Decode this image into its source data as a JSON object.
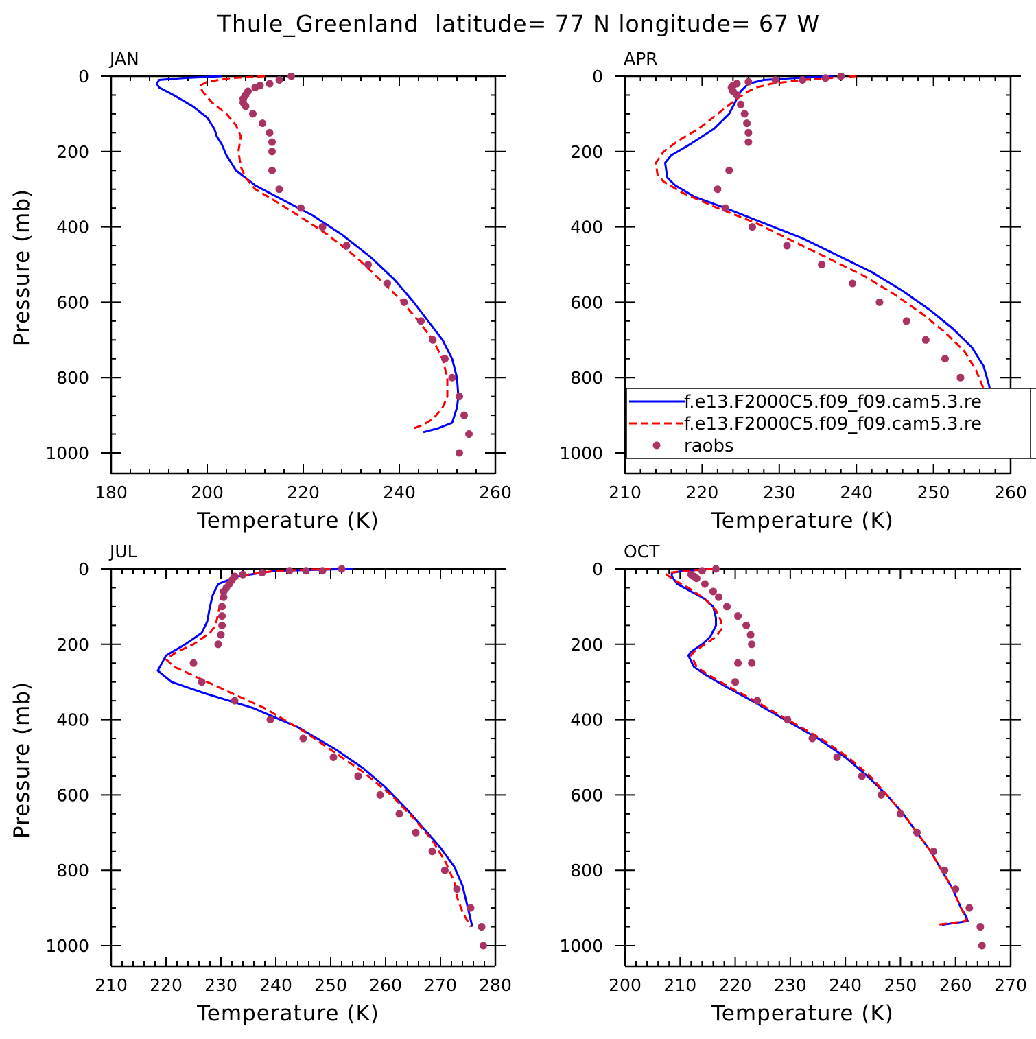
{
  "figure": {
    "title": "Thule_Greenland  latitude= 77 N longitude= 67 W"
  },
  "legend": {
    "entries": [
      {
        "label": "f.e13.F2000C5.f09_f09.cam5.3.re",
        "style": "solid",
        "color": "#0000ff"
      },
      {
        "label": "f.e13.F2000C5.f09_f09.cam5.3.re",
        "style": "dashed",
        "color": "#ff0000"
      },
      {
        "label": "raobs",
        "style": "marker",
        "color": "#aa3366"
      }
    ]
  },
  "chart_data": [
    {
      "type": "line",
      "panel_label": "JAN",
      "xlabel": "Temperature (K)",
      "ylabel": "Pressure (mb)",
      "xlim": [
        180,
        260
      ],
      "xticks": [
        180,
        200,
        220,
        240,
        260
      ],
      "ylim": [
        0,
        1000
      ],
      "yticks": [
        0,
        200,
        400,
        600,
        800,
        1000
      ],
      "y_reversed": true,
      "series": [
        {
          "style": "solid",
          "color": "#0000ff",
          "x": [
            203,
            195,
            190,
            189.5,
            190,
            193,
            197,
            200,
            201.5,
            202,
            203,
            204,
            206,
            210,
            216,
            222,
            228,
            234,
            239,
            243,
            246,
            249,
            251,
            252,
            252.3,
            252,
            251,
            248,
            245
          ],
          "y": [
            0,
            5,
            10,
            20,
            30,
            50,
            80,
            110,
            140,
            160,
            180,
            210,
            250,
            290,
            330,
            370,
            420,
            480,
            540,
            600,
            650,
            700,
            750,
            800,
            850,
            880,
            920,
            935,
            945
          ]
        },
        {
          "style": "dashed",
          "color": "#ff0000",
          "x": [
            212,
            205,
            200,
            198.5,
            199,
            201,
            204,
            206,
            207,
            206.5,
            207,
            208,
            210,
            214,
            219,
            225,
            231,
            236,
            240,
            244,
            247,
            249,
            250,
            250,
            249,
            247,
            245,
            243
          ],
          "y": [
            0,
            5,
            15,
            25,
            40,
            70,
            100,
            130,
            160,
            200,
            240,
            270,
            300,
            330,
            370,
            420,
            480,
            540,
            590,
            650,
            700,
            750,
            800,
            850,
            880,
            910,
            925,
            935
          ]
        },
        {
          "style": "marker",
          "color": "#aa3366",
          "x": [
            217.5,
            215,
            213,
            211,
            210,
            208.5,
            208,
            207.5,
            207.5,
            208,
            209.5,
            211.5,
            213,
            213.5,
            213.5,
            213.5,
            215,
            219.5,
            224,
            229,
            233.5,
            237.5,
            241,
            244.5,
            247,
            249.5,
            251,
            252.5,
            253.5,
            254.5,
            252.5
          ],
          "y": [
            0,
            10,
            20,
            25,
            30,
            40,
            50,
            60,
            70,
            80,
            100,
            125,
            150,
            175,
            200,
            250,
            300,
            350,
            400,
            450,
            500,
            550,
            600,
            650,
            700,
            750,
            800,
            850,
            900,
            950,
            1000
          ]
        }
      ]
    },
    {
      "type": "line",
      "panel_label": "APR",
      "xlabel": "Temperature (K)",
      "ylabel": "",
      "xlim": [
        210,
        260
      ],
      "xticks": [
        210,
        220,
        230,
        240,
        250,
        260
      ],
      "ylim": [
        0,
        1000
      ],
      "yticks": [
        0,
        200,
        400,
        600,
        800,
        1000
      ],
      "y_reversed": true,
      "series": [
        {
          "style": "solid",
          "color": "#0000ff",
          "x": [
            237,
            232,
            228,
            226,
            225,
            224.5,
            223.5,
            221.5,
            218.5,
            216,
            215.2,
            215.5,
            216.5,
            219,
            223,
            228,
            233,
            238,
            242,
            246,
            249.5,
            252.5,
            255,
            256.5,
            257.2,
            257.5,
            257.2,
            256,
            253.5
          ],
          "y": [
            0,
            5,
            10,
            20,
            40,
            60,
            100,
            140,
            180,
            210,
            230,
            270,
            290,
            320,
            350,
            390,
            430,
            480,
            520,
            570,
            620,
            670,
            720,
            770,
            820,
            850,
            900,
            930,
            945
          ]
        },
        {
          "style": "dashed",
          "color": "#ff0000",
          "x": [
            240,
            233,
            229,
            227,
            226,
            224.5,
            222,
            219.5,
            217,
            215,
            214,
            214.2,
            215,
            217.5,
            222,
            227,
            232,
            237,
            241,
            245,
            248.5,
            251.5,
            254,
            255.5,
            256.5,
            257,
            257,
            256.5
          ],
          "y": [
            0,
            10,
            20,
            30,
            40,
            60,
            100,
            140,
            170,
            200,
            230,
            260,
            280,
            310,
            350,
            390,
            440,
            490,
            530,
            580,
            630,
            680,
            730,
            780,
            830,
            870,
            900,
            920
          ]
        },
        {
          "style": "marker",
          "color": "#aa3366",
          "x": [
            238,
            236,
            233,
            229.5,
            226,
            224.5,
            224,
            223.8,
            224,
            224.5,
            225,
            225.5,
            225.8,
            226,
            226,
            223.5,
            222,
            223,
            226.5,
            231,
            235.5,
            239.5,
            243,
            246.5,
            249,
            251.5,
            253.5,
            255,
            256,
            257,
            257
          ],
          "y": [
            0,
            5,
            10,
            10,
            15,
            20,
            25,
            30,
            40,
            50,
            75,
            100,
            125,
            150,
            175,
            250,
            300,
            350,
            400,
            450,
            500,
            550,
            600,
            650,
            700,
            750,
            800,
            850,
            900,
            950,
            1000
          ]
        }
      ]
    },
    {
      "type": "line",
      "panel_label": "JUL",
      "xlabel": "Temperature (K)",
      "ylabel": "Pressure (mb)",
      "xlim": [
        210,
        280
      ],
      "xticks": [
        210,
        220,
        230,
        240,
        250,
        260,
        270,
        280
      ],
      "ylim": [
        0,
        1000
      ],
      "yticks": [
        0,
        200,
        400,
        600,
        800,
        1000
      ],
      "y_reversed": true,
      "series": [
        {
          "style": "solid",
          "color": "#0000ff",
          "x": [
            254,
            240,
            233,
            229.5,
            228.5,
            228,
            227.5,
            226.5,
            223.5,
            220,
            218.5,
            221,
            227,
            236,
            244,
            251,
            256,
            260,
            264,
            267,
            270,
            272.5,
            274,
            275,
            275.8
          ],
          "y": [
            0,
            5,
            20,
            40,
            70,
            100,
            140,
            170,
            200,
            230,
            270,
            300,
            330,
            370,
            420,
            480,
            530,
            580,
            640,
            690,
            740,
            790,
            840,
            900,
            950
          ]
        },
        {
          "style": "dashed",
          "color": "#ff0000",
          "x": [
            250,
            240,
            235,
            232,
            230.5,
            230,
            229.5,
            229,
            228,
            225,
            222,
            220,
            221.5,
            226,
            232,
            238,
            245,
            251,
            256,
            261,
            265,
            268.5,
            271,
            272.5,
            273,
            274,
            275.5
          ],
          "y": [
            0,
            5,
            15,
            30,
            50,
            80,
            120,
            150,
            170,
            200,
            220,
            240,
            260,
            290,
            330,
            370,
            430,
            490,
            540,
            600,
            660,
            720,
            780,
            830,
            870,
            910,
            950
          ]
        },
        {
          "style": "marker",
          "color": "#aa3366",
          "x": [
            252,
            248.5,
            245.5,
            242.5,
            237.5,
            234,
            232.5,
            232,
            231.5,
            231,
            230.5,
            230.5,
            230.2,
            230.2,
            230.2,
            230,
            229.5,
            225,
            226.5,
            232.5,
            239,
            245,
            250.5,
            255,
            259,
            262.5,
            265.5,
            268.5,
            270.8,
            273,
            275.5,
            277.5,
            277.8
          ],
          "y": [
            0,
            5,
            5,
            5,
            10,
            15,
            20,
            30,
            40,
            50,
            60,
            75,
            100,
            125,
            150,
            175,
            200,
            250,
            300,
            350,
            400,
            450,
            500,
            550,
            600,
            650,
            700,
            750,
            800,
            850,
            900,
            950,
            1000
          ]
        }
      ]
    },
    {
      "type": "line",
      "panel_label": "OCT",
      "xlabel": "Temperature (K)",
      "ylabel": "",
      "xlim": [
        200,
        270
      ],
      "xticks": [
        200,
        210,
        220,
        230,
        240,
        250,
        260,
        270
      ],
      "ylim": [
        0,
        1000
      ],
      "yticks": [
        0,
        200,
        400,
        600,
        800,
        1000
      ],
      "y_reversed": true,
      "series": [
        {
          "style": "solid",
          "color": "#0000ff",
          "x": [
            216,
            211,
            208.5,
            208.5,
            209.5,
            212,
            214.5,
            216,
            216.5,
            216.5,
            215.5,
            214,
            212,
            211.5,
            212.5,
            214.5,
            218,
            223,
            229,
            235,
            240,
            244,
            247.5,
            250.5,
            253,
            255.5,
            257.5,
            259.5,
            261,
            262,
            262.2,
            257.5
          ],
          "y": [
            0,
            5,
            10,
            20,
            40,
            60,
            80,
            100,
            130,
            150,
            180,
            200,
            220,
            230,
            260,
            280,
            310,
            350,
            400,
            450,
            500,
            550,
            600,
            650,
            700,
            750,
            800,
            850,
            900,
            925,
            935,
            945
          ]
        },
        {
          "style": "dashed",
          "color": "#ff0000",
          "x": [
            216,
            211,
            208,
            207.5,
            209,
            211.5,
            214.5,
            216.5,
            217.5,
            217.5,
            216.5,
            214.5,
            212.5,
            212,
            213,
            215,
            218.5,
            223.5,
            229.5,
            235.5,
            240.5,
            244.5,
            247.5,
            250.5,
            253,
            255.5,
            257.5,
            259.5,
            261,
            261.8,
            262,
            256.5
          ],
          "y": [
            0,
            5,
            10,
            15,
            30,
            50,
            80,
            110,
            140,
            160,
            180,
            200,
            220,
            230,
            260,
            280,
            310,
            350,
            400,
            450,
            500,
            550,
            600,
            650,
            700,
            750,
            800,
            850,
            900,
            925,
            935,
            945
          ]
        },
        {
          "style": "marker",
          "color": "#aa3366",
          "x": [
            216.5,
            214,
            212,
            212.5,
            213,
            214.5,
            216,
            217,
            218.5,
            220.5,
            222,
            222.8,
            223,
            223,
            220.5,
            220,
            224,
            229.5,
            234,
            238.5,
            243,
            246.5,
            250,
            253,
            256,
            258,
            260,
            262.5,
            264.5,
            264.8
          ],
          "y": [
            0,
            5,
            15,
            20,
            25,
            40,
            60,
            75,
            100,
            125,
            150,
            175,
            200,
            250,
            250,
            300,
            350,
            400,
            450,
            500,
            550,
            600,
            650,
            700,
            750,
            800,
            850,
            900,
            950,
            1000
          ]
        }
      ]
    }
  ]
}
